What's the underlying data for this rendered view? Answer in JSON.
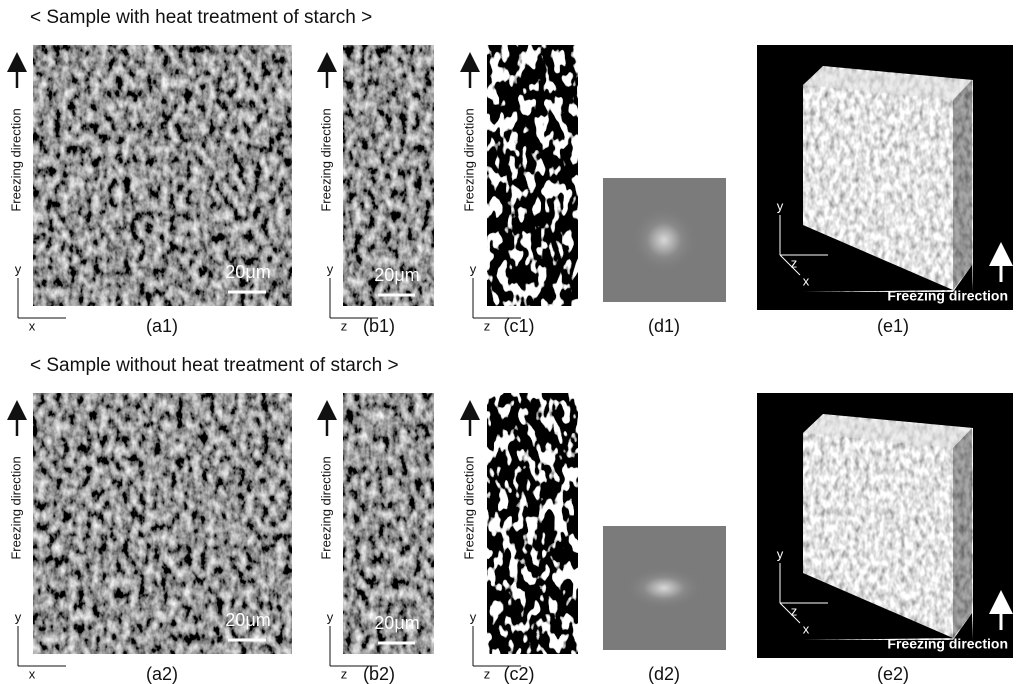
{
  "rows": [
    {
      "heading": "< Sample with heat treatment of starch >",
      "panels": {
        "a": {
          "label": "(a1)",
          "scale_bar": "20μm"
        },
        "b": {
          "label": "(b1)",
          "scale_bar": "20μm"
        },
        "c": {
          "label": "(c1)"
        },
        "d": {
          "label": "(d1)"
        },
        "e": {
          "label": "(e1)"
        }
      }
    },
    {
      "heading": "< Sample without heat treatment of starch >",
      "panels": {
        "a": {
          "label": "(a2)",
          "scale_bar": "20μm"
        },
        "b": {
          "label": "(b2)",
          "scale_bar": "20μm"
        },
        "c": {
          "label": "(c2)"
        },
        "d": {
          "label": "(d2)"
        },
        "e": {
          "label": "(e2)"
        }
      }
    }
  ],
  "freezing_direction": "Freezing direction",
  "axes": {
    "x": "x",
    "y": "y",
    "z": "z"
  }
}
